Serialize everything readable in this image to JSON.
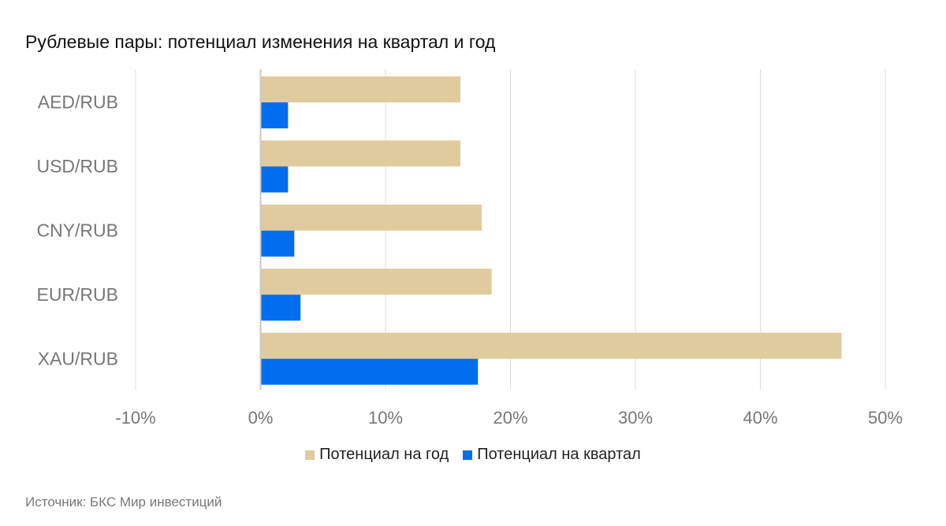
{
  "chart_data": {
    "type": "bar",
    "orientation": "horizontal",
    "title": "Рублевые пары: потенциал изменения на квартал и год",
    "categories": [
      "AED/RUB",
      "USD/RUB",
      "CNY/RUB",
      "EUR/RUB",
      "XAU/RUB"
    ],
    "series": [
      {
        "name": "Потенциал на год",
        "color": "#e0cb9e",
        "values": [
          16.0,
          16.0,
          17.7,
          18.5,
          46.5
        ]
      },
      {
        "name": "Потенциал на квартал",
        "color": "#006eef",
        "values": [
          2.2,
          2.2,
          2.7,
          3.2,
          17.4
        ]
      }
    ],
    "xlim": [
      -10,
      50
    ],
    "xticks": [
      -10,
      0,
      10,
      20,
      30,
      40,
      50
    ],
    "xtick_labels": [
      "-10%",
      "0%",
      "10%",
      "20%",
      "30%",
      "40%",
      "50%"
    ],
    "grid": true,
    "legend_position": "bottom"
  },
  "source": "Источник: БКС Мир инвестиций"
}
